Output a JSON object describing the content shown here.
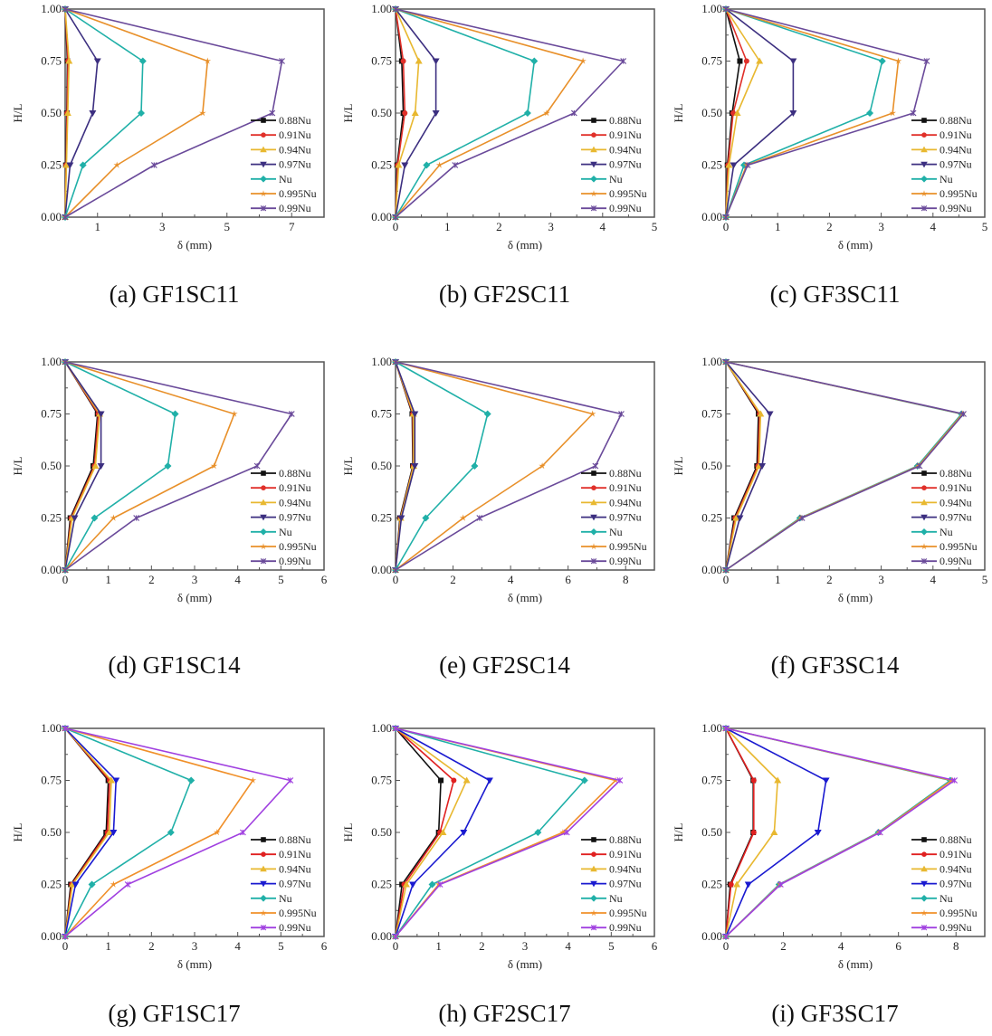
{
  "legend_labels": [
    "0.88Nu",
    "0.91Nu",
    "0.94Nu",
    "0.97Nu",
    "Nu",
    "0.995Nu",
    "0.99Nu"
  ],
  "palettes": {
    "top": [
      "#111111",
      "#e0302a",
      "#e8b830",
      "#3c2f80",
      "#20b0a8",
      "#e8902a",
      "#6a4a9a"
    ],
    "bottom": [
      "#111111",
      "#e02020",
      "#e8b830",
      "#1a1ad0",
      "#20b0a8",
      "#f0902a",
      "#a040e0"
    ]
  },
  "markers": [
    "square",
    "circle",
    "triangle-up",
    "triangle-down",
    "diamond",
    "star",
    "asterisk"
  ],
  "chart_data": [
    {
      "type": "line",
      "caption": "(a) GF1SC11",
      "xlabel": "δ (mm)",
      "ylabel": "H/L",
      "xlim": [
        0,
        8
      ],
      "ylim": [
        0,
        1
      ],
      "xticks": [
        1,
        3,
        5,
        7
      ],
      "xtick_labels": [
        "1",
        "3",
        "5",
        "7"
      ],
      "xminor": [
        0,
        2,
        4,
        6,
        8
      ],
      "yticks": [
        0,
        0.25,
        0.5,
        0.75,
        1.0
      ],
      "ytick_labels": [
        "0.00",
        "0.25",
        "0.50",
        "0.75",
        "1.00"
      ],
      "legend_position": "bottom-right",
      "palette": "top",
      "y": [
        0,
        0.25,
        0.5,
        0.75,
        1.0
      ],
      "series": [
        {
          "name": "0.88Nu",
          "x": [
            0,
            0.02,
            0.05,
            0.07,
            0
          ]
        },
        {
          "name": "0.91Nu",
          "x": [
            0,
            0.03,
            0.06,
            0.09,
            0
          ]
        },
        {
          "name": "0.94Nu",
          "x": [
            0,
            0.04,
            0.08,
            0.12,
            0
          ]
        },
        {
          "name": "0.97Nu",
          "x": [
            0,
            0.15,
            0.85,
            1.0,
            0
          ]
        },
        {
          "name": "Nu",
          "x": [
            0,
            0.55,
            2.35,
            2.4,
            0
          ]
        },
        {
          "name": "0.995Nu",
          "x": [
            0,
            1.6,
            4.25,
            4.4,
            0
          ]
        },
        {
          "name": "0.99Nu",
          "x": [
            0,
            2.75,
            6.4,
            6.7,
            0
          ]
        }
      ]
    },
    {
      "type": "line",
      "caption": "(b) GF2SC11",
      "xlabel": "δ (mm)",
      "ylabel": "H/L",
      "xlim": [
        0,
        5
      ],
      "ylim": [
        0,
        1
      ],
      "xticks": [
        0,
        1,
        2,
        3,
        4,
        5
      ],
      "xtick_labels": [
        "0",
        "1",
        "2",
        "3",
        "4",
        "5"
      ],
      "xminor": [
        0.5,
        1.5,
        2.5,
        3.5,
        4.5
      ],
      "yticks": [
        0,
        0.25,
        0.5,
        0.75,
        1.0
      ],
      "ytick_labels": [
        "0.00",
        "0.25",
        "0.50",
        "0.75",
        "1.00"
      ],
      "legend_position": "bottom-right",
      "palette": "top",
      "y": [
        0,
        0.25,
        0.5,
        0.75,
        1.0
      ],
      "series": [
        {
          "name": "0.88Nu",
          "x": [
            0,
            0.03,
            0.15,
            0.12,
            0
          ]
        },
        {
          "name": "0.91Nu",
          "x": [
            0,
            0.04,
            0.18,
            0.15,
            0
          ]
        },
        {
          "name": "0.94Nu",
          "x": [
            0,
            0.06,
            0.38,
            0.45,
            0
          ]
        },
        {
          "name": "0.97Nu",
          "x": [
            0,
            0.18,
            0.78,
            0.78,
            0
          ]
        },
        {
          "name": "Nu",
          "x": [
            0,
            0.6,
            2.55,
            2.68,
            0
          ]
        },
        {
          "name": "0.995Nu",
          "x": [
            0,
            0.85,
            2.92,
            3.62,
            0
          ]
        },
        {
          "name": "0.99Nu",
          "x": [
            0,
            1.15,
            3.45,
            4.4,
            0
          ]
        }
      ]
    },
    {
      "type": "line",
      "caption": "(c) GF3SC11",
      "xlabel": "δ (mm)",
      "ylabel": "H/L",
      "xlim": [
        0,
        5
      ],
      "ylim": [
        0,
        1
      ],
      "xticks": [
        0,
        1,
        2,
        3,
        4,
        5
      ],
      "xtick_labels": [
        "0",
        "1",
        "2",
        "3",
        "4",
        "5"
      ],
      "xminor": [
        0.5,
        1.5,
        2.5,
        3.5,
        4.5
      ],
      "yticks": [
        0,
        0.25,
        0.5,
        0.75,
        1.0
      ],
      "ytick_labels": [
        "0.00",
        "0.25",
        "0.50",
        "0.75",
        "1.00"
      ],
      "legend_position": "bottom-right",
      "palette": "top",
      "y": [
        0,
        0.25,
        0.5,
        0.75,
        1.0
      ],
      "series": [
        {
          "name": "0.88Nu",
          "x": [
            0,
            0.03,
            0.12,
            0.27,
            0
          ]
        },
        {
          "name": "0.91Nu",
          "x": [
            0,
            0.04,
            0.14,
            0.4,
            0
          ]
        },
        {
          "name": "0.94Nu",
          "x": [
            0,
            0.06,
            0.22,
            0.65,
            0
          ]
        },
        {
          "name": "0.97Nu",
          "x": [
            0,
            0.15,
            1.3,
            1.3,
            0
          ]
        },
        {
          "name": "Nu",
          "x": [
            0,
            0.35,
            2.78,
            3.02,
            0
          ]
        },
        {
          "name": "0.995Nu",
          "x": [
            0,
            0.4,
            3.22,
            3.33,
            0
          ]
        },
        {
          "name": "0.99Nu",
          "x": [
            0,
            0.42,
            3.62,
            3.88,
            0
          ]
        }
      ]
    },
    {
      "type": "line",
      "caption": "(d) GF1SC14",
      "xlabel": "δ (mm)",
      "ylabel": "H/L",
      "xlim": [
        0,
        6
      ],
      "ylim": [
        0,
        1
      ],
      "xticks": [
        0,
        1,
        2,
        3,
        4,
        5,
        6
      ],
      "xtick_labels": [
        "0",
        "1",
        "2",
        "3",
        "4",
        "5",
        "6"
      ],
      "xminor": [
        0.5,
        1.5,
        2.5,
        3.5,
        4.5,
        5.5
      ],
      "yticks": [
        0,
        0.25,
        0.5,
        0.75,
        1.0
      ],
      "ytick_labels": [
        "0.00",
        "0.25",
        "0.50",
        "0.75",
        "1.00"
      ],
      "legend_position": "bottom-right",
      "palette": "top",
      "y": [
        0,
        0.25,
        0.5,
        0.75,
        1.0
      ],
      "series": [
        {
          "name": "0.88Nu",
          "x": [
            0,
            0.12,
            0.65,
            0.75,
            0
          ]
        },
        {
          "name": "0.91Nu",
          "x": [
            0,
            0.14,
            0.68,
            0.77,
            0
          ]
        },
        {
          "name": "0.94Nu",
          "x": [
            0,
            0.16,
            0.7,
            0.8,
            0
          ]
        },
        {
          "name": "0.97Nu",
          "x": [
            0,
            0.22,
            0.83,
            0.83,
            0
          ]
        },
        {
          "name": "Nu",
          "x": [
            0,
            0.68,
            2.38,
            2.55,
            0
          ]
        },
        {
          "name": "0.995Nu",
          "x": [
            0,
            1.12,
            3.45,
            3.92,
            0
          ]
        },
        {
          "name": "0.99Nu",
          "x": [
            0,
            1.65,
            4.45,
            5.25,
            0
          ]
        }
      ]
    },
    {
      "type": "line",
      "caption": "(e) GF2SC14",
      "xlabel": "δ (mm)",
      "ylabel": "H/L",
      "xlim": [
        0,
        9
      ],
      "ylim": [
        0,
        1
      ],
      "xticks": [
        0,
        2,
        4,
        6,
        8
      ],
      "xtick_labels": [
        "0",
        "2",
        "4",
        "6",
        "8"
      ],
      "xminor": [
        1,
        3,
        5,
        7,
        9
      ],
      "yticks": [
        0,
        0.25,
        0.5,
        0.75,
        1.0
      ],
      "ytick_labels": [
        "0.00",
        "0.25",
        "0.50",
        "0.75",
        "1.00"
      ],
      "legend_position": "bottom-right",
      "palette": "top",
      "y": [
        0,
        0.25,
        0.5,
        0.75,
        1.0
      ],
      "series": [
        {
          "name": "0.88Nu",
          "x": [
            0,
            0.15,
            0.6,
            0.58,
            0
          ]
        },
        {
          "name": "0.91Nu",
          "x": [
            0,
            0.17,
            0.62,
            0.6,
            0
          ]
        },
        {
          "name": "0.94Nu",
          "x": [
            0,
            0.18,
            0.63,
            0.62,
            0
          ]
        },
        {
          "name": "0.97Nu",
          "x": [
            0,
            0.2,
            0.67,
            0.67,
            0
          ]
        },
        {
          "name": "Nu",
          "x": [
            0,
            1.05,
            2.75,
            3.2,
            0
          ]
        },
        {
          "name": "0.995Nu",
          "x": [
            0,
            2.35,
            5.1,
            6.85,
            0
          ]
        },
        {
          "name": "0.99Nu",
          "x": [
            0,
            2.92,
            6.95,
            7.85,
            0
          ]
        }
      ]
    },
    {
      "type": "line",
      "caption": "(f) GF3SC14",
      "xlabel": "δ (mm)",
      "ylabel": "H/L",
      "xlim": [
        0,
        5
      ],
      "ylim": [
        0,
        1
      ],
      "xticks": [
        0,
        1,
        2,
        3,
        4,
        5
      ],
      "xtick_labels": [
        "0",
        "1",
        "2",
        "3",
        "4",
        "5"
      ],
      "xminor": [
        0.5,
        1.5,
        2.5,
        3.5,
        4.5
      ],
      "yticks": [
        0,
        0.25,
        0.5,
        0.75,
        1.0
      ],
      "ytick_labels": [
        "0.00",
        "0.25",
        "0.50",
        "0.75",
        "1.00"
      ],
      "legend_position": "bottom-right",
      "palette": "top",
      "y": [
        0,
        0.25,
        0.5,
        0.75,
        1.0
      ],
      "series": [
        {
          "name": "0.88Nu",
          "x": [
            0,
            0.16,
            0.6,
            0.63,
            0
          ]
        },
        {
          "name": "0.91Nu",
          "x": [
            0,
            0.18,
            0.62,
            0.65,
            0
          ]
        },
        {
          "name": "0.94Nu",
          "x": [
            0,
            0.2,
            0.64,
            0.67,
            0
          ]
        },
        {
          "name": "0.97Nu",
          "x": [
            0,
            0.27,
            0.7,
            0.85,
            0
          ]
        },
        {
          "name": "Nu",
          "x": [
            0,
            1.43,
            3.7,
            4.55,
            0
          ]
        },
        {
          "name": "0.995Nu",
          "x": [
            0,
            1.45,
            3.72,
            4.57,
            0
          ]
        },
        {
          "name": "0.99Nu",
          "x": [
            0,
            1.47,
            3.74,
            4.59,
            0
          ]
        }
      ]
    },
    {
      "type": "line",
      "caption": "(g) GF1SC17",
      "xlabel": "δ (mm)",
      "ylabel": "H/L",
      "xlim": [
        0,
        6
      ],
      "ylim": [
        0,
        1
      ],
      "xticks": [
        0,
        1,
        2,
        3,
        4,
        5,
        6
      ],
      "xtick_labels": [
        "0",
        "1",
        "2",
        "3",
        "4",
        "5",
        "6"
      ],
      "xminor": [
        0.5,
        1.5,
        2.5,
        3.5,
        4.5,
        5.5
      ],
      "yticks": [
        0,
        0.25,
        0.5,
        0.75,
        1.0
      ],
      "ytick_labels": [
        "0.00",
        "0.25",
        "0.50",
        "0.75",
        "1.00"
      ],
      "legend_position": "bottom-right",
      "palette": "bottom",
      "y": [
        0,
        0.25,
        0.5,
        0.75,
        1.0
      ],
      "series": [
        {
          "name": "0.88Nu",
          "x": [
            0,
            0.13,
            0.95,
            1.0,
            0
          ]
        },
        {
          "name": "0.91Nu",
          "x": [
            0,
            0.15,
            0.98,
            1.03,
            0
          ]
        },
        {
          "name": "0.94Nu",
          "x": [
            0,
            0.17,
            1.02,
            1.07,
            0
          ]
        },
        {
          "name": "0.97Nu",
          "x": [
            0,
            0.24,
            1.12,
            1.18,
            0
          ]
        },
        {
          "name": "Nu",
          "x": [
            0,
            0.62,
            2.45,
            2.92,
            0
          ]
        },
        {
          "name": "0.995Nu",
          "x": [
            0,
            1.12,
            3.52,
            4.35,
            0
          ]
        },
        {
          "name": "0.99Nu",
          "x": [
            0,
            1.45,
            4.12,
            5.22,
            0
          ]
        }
      ]
    },
    {
      "type": "line",
      "caption": "(h) GF2SC17",
      "xlabel": "δ (mm)",
      "ylabel": "H/L",
      "xlim": [
        0,
        6
      ],
      "ylim": [
        0,
        1
      ],
      "xticks": [
        0,
        1,
        2,
        3,
        4,
        5,
        6
      ],
      "xtick_labels": [
        "0",
        "1",
        "2",
        "3",
        "4",
        "5",
        "6"
      ],
      "xminor": [
        0.5,
        1.5,
        2.5,
        3.5,
        4.5,
        5.5
      ],
      "yticks": [
        0,
        0.25,
        0.5,
        0.75,
        1.0
      ],
      "ytick_labels": [
        "0.00",
        "0.25",
        "0.50",
        "0.75",
        "1.00"
      ],
      "legend_position": "bottom-right",
      "palette": "bottom",
      "y": [
        0,
        0.25,
        0.5,
        0.75,
        1.0
      ],
      "series": [
        {
          "name": "0.88Nu",
          "x": [
            0,
            0.15,
            1.0,
            1.05,
            0
          ]
        },
        {
          "name": "0.91Nu",
          "x": [
            0,
            0.2,
            1.03,
            1.35,
            0
          ]
        },
        {
          "name": "0.94Nu",
          "x": [
            0,
            0.25,
            1.1,
            1.65,
            0
          ]
        },
        {
          "name": "0.97Nu",
          "x": [
            0,
            0.4,
            1.58,
            2.18,
            0
          ]
        },
        {
          "name": "Nu",
          "x": [
            0,
            0.85,
            3.3,
            4.38,
            0
          ]
        },
        {
          "name": "0.995Nu",
          "x": [
            0,
            1.0,
            3.88,
            5.1,
            0
          ]
        },
        {
          "name": "0.99Nu",
          "x": [
            0,
            1.03,
            3.97,
            5.2,
            0
          ]
        }
      ]
    },
    {
      "type": "line",
      "caption": "(i) GF3SC17",
      "xlabel": "δ (mm)",
      "ylabel": "H/L",
      "xlim": [
        0,
        9
      ],
      "ylim": [
        0,
        1
      ],
      "xticks": [
        0,
        2,
        4,
        6,
        8
      ],
      "xtick_labels": [
        "0",
        "2",
        "4",
        "6",
        "8"
      ],
      "xminor": [
        1,
        3,
        5,
        7,
        9
      ],
      "yticks": [
        0,
        0.25,
        0.5,
        0.75,
        1.0
      ],
      "ytick_labels": [
        "0.00",
        "0.25",
        "0.50",
        "0.75",
        "1.00"
      ],
      "legend_position": "bottom-right",
      "palette": "bottom",
      "y": [
        0,
        0.25,
        0.5,
        0.75,
        1.0
      ],
      "series": [
        {
          "name": "0.88Nu",
          "x": [
            0,
            0.15,
            0.95,
            0.95,
            0
          ]
        },
        {
          "name": "0.91Nu",
          "x": [
            0,
            0.18,
            0.97,
            0.97,
            0
          ]
        },
        {
          "name": "0.94Nu",
          "x": [
            0,
            0.38,
            1.68,
            1.8,
            0
          ]
        },
        {
          "name": "0.97Nu",
          "x": [
            0,
            0.78,
            3.2,
            3.48,
            0
          ]
        },
        {
          "name": "Nu",
          "x": [
            0,
            1.85,
            5.3,
            7.8,
            0
          ]
        },
        {
          "name": "0.995Nu",
          "x": [
            0,
            1.88,
            5.33,
            7.85,
            0
          ]
        },
        {
          "name": "0.99Nu",
          "x": [
            0,
            1.9,
            5.36,
            7.95,
            0
          ]
        }
      ]
    }
  ]
}
